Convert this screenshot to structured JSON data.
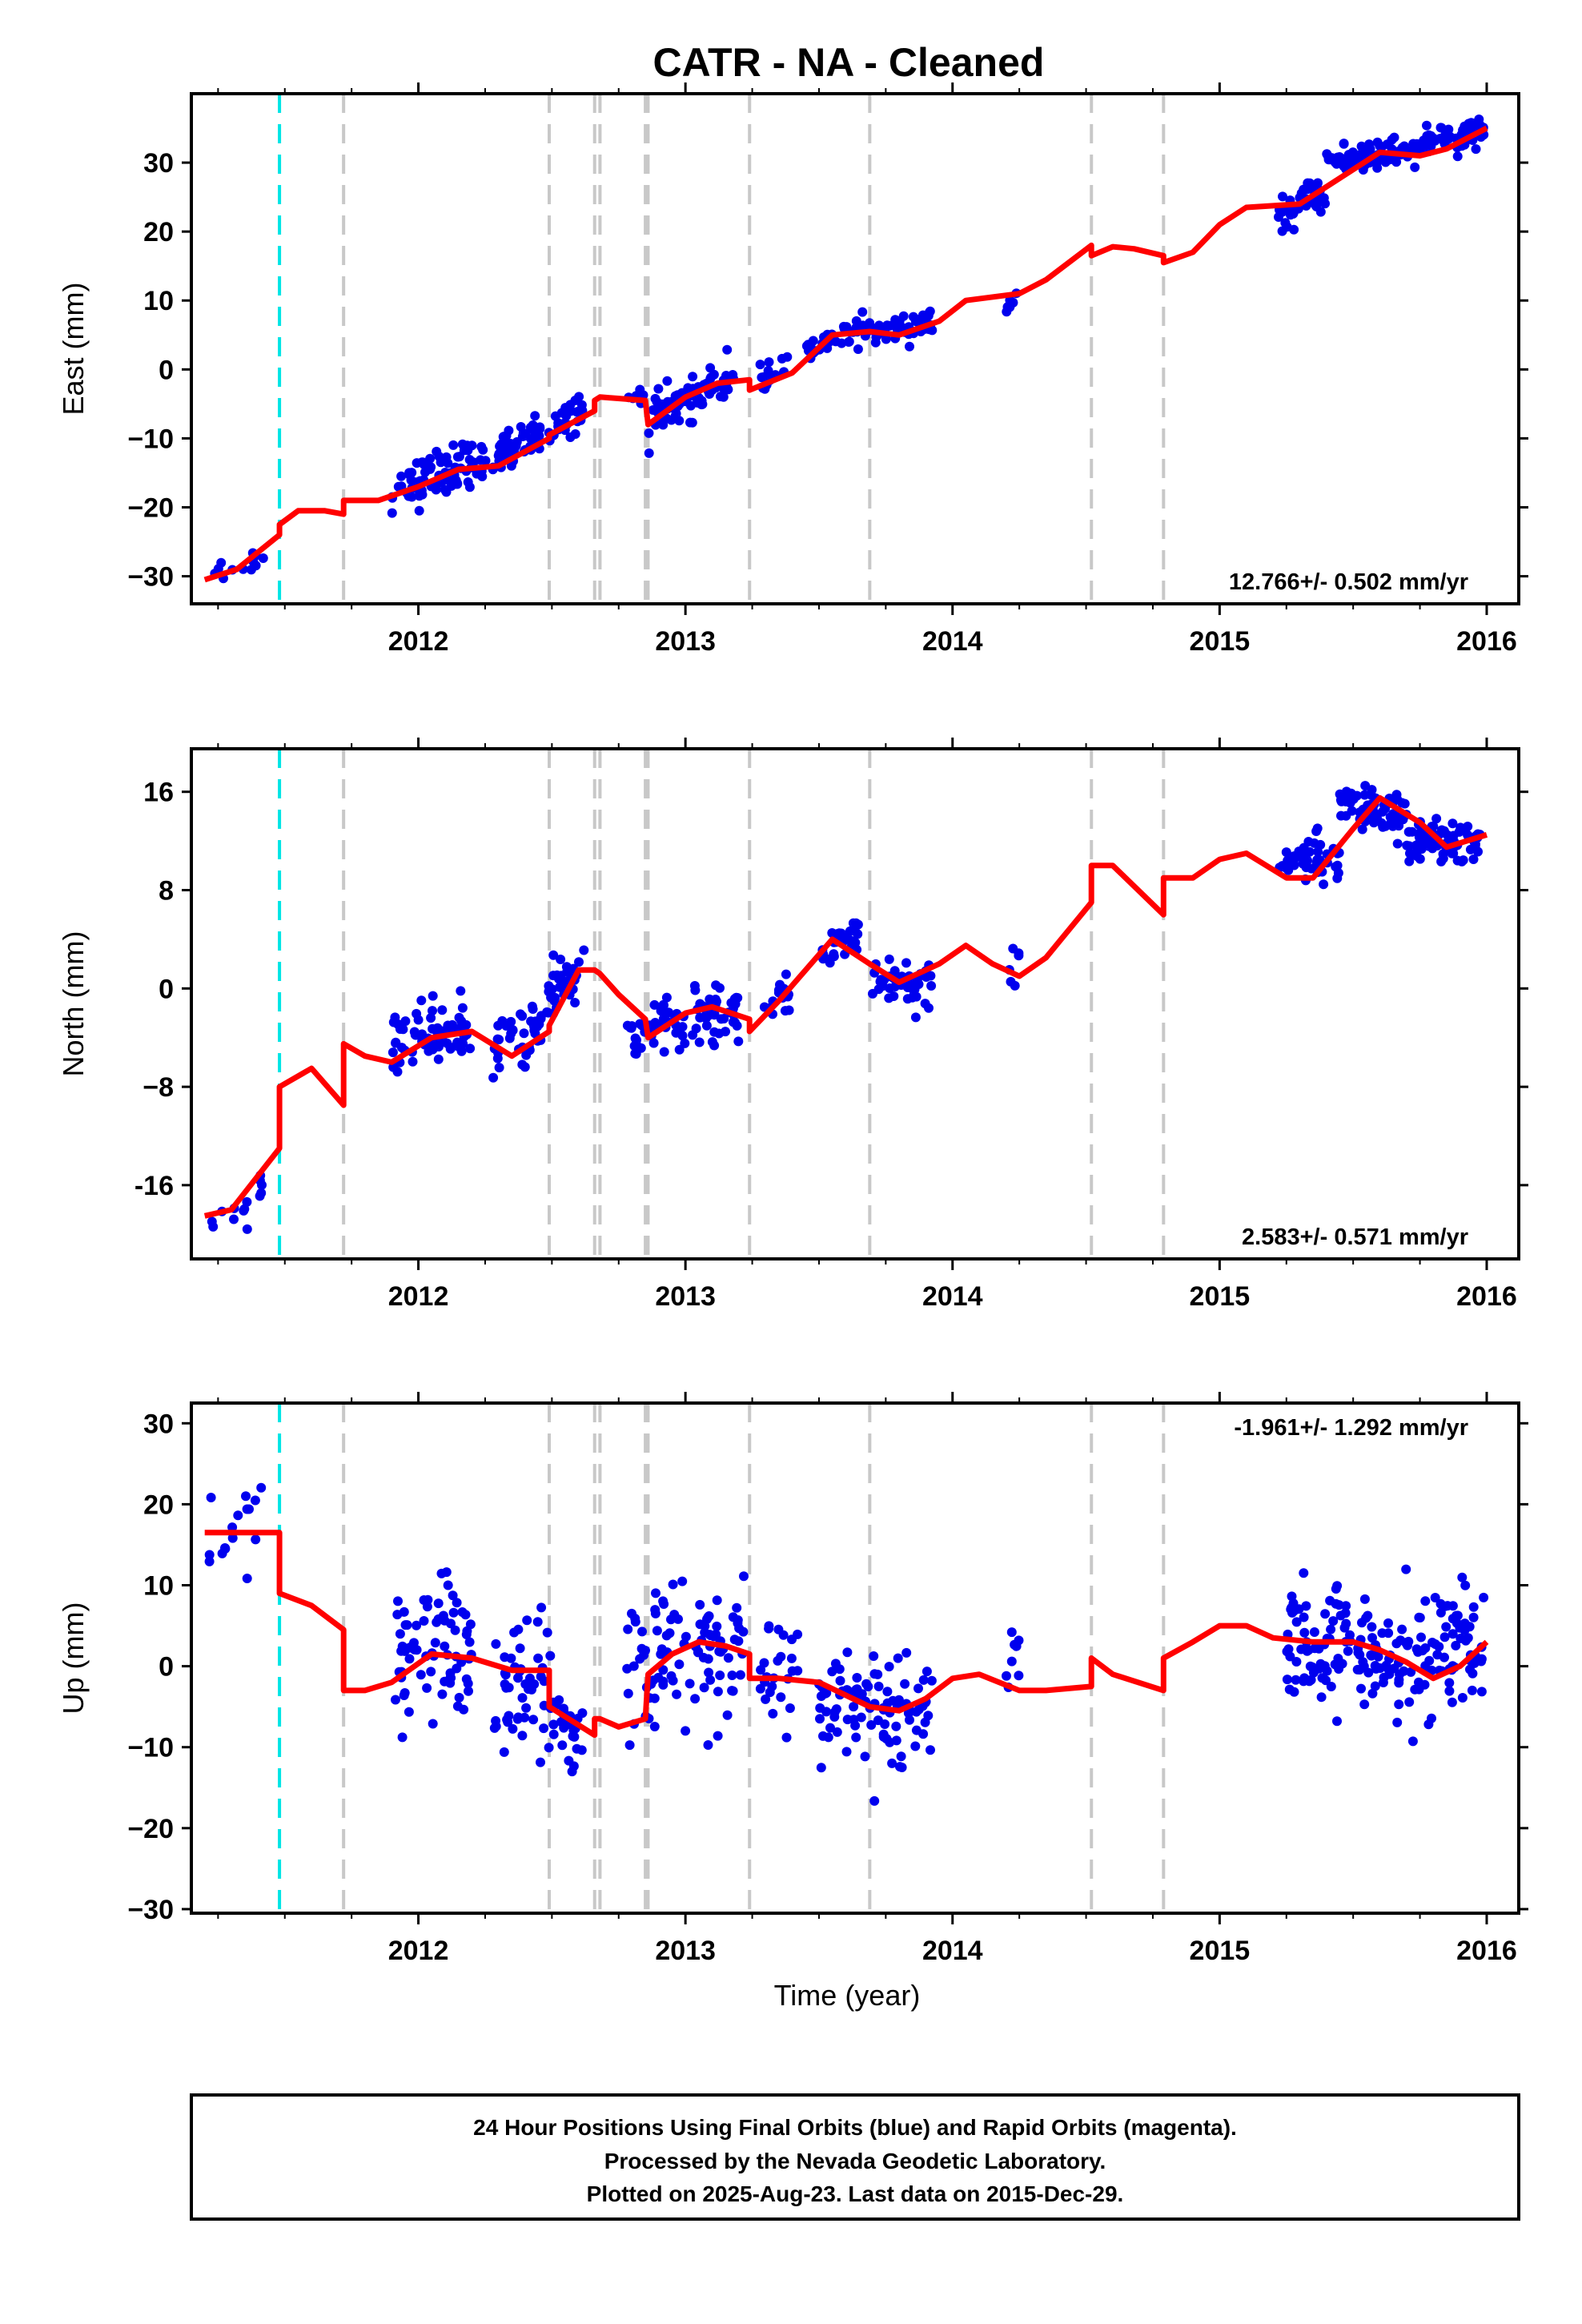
{
  "title": "CATR  - NA - Cleaned",
  "x_axis": {
    "label": "Time (year)",
    "lim": [
      2011.15,
      2016.12
    ],
    "ticks": [
      2012,
      2013,
      2014,
      2015,
      2016
    ],
    "tick_labels": [
      "2012",
      "2013",
      "2014",
      "2015",
      "2016"
    ]
  },
  "colors": {
    "final_orbits": "#0000ee",
    "model": "#ff0000",
    "antenna_change": "#00e5e5",
    "equipment_change": "#c8c8c8",
    "frame": "#000000"
  },
  "steps": {
    "antenna": [
      2011.48
    ],
    "equipment": [
      2011.72,
      2012.49,
      2012.66,
      2012.68,
      2012.85,
      2012.86,
      2013.24,
      2013.69,
      2014.52,
      2014.79
    ]
  },
  "chart_data": [
    {
      "type": "scatter",
      "panel": "east",
      "ylabel": "East (mm)",
      "ylim": [
        -34,
        40
      ],
      "yticks": [
        -30,
        -20,
        -10,
        0,
        10,
        20,
        30
      ],
      "ytick_labels": [
        "−30",
        "−20",
        "−10",
        "0",
        "10",
        "20",
        "30"
      ],
      "rate_label": "12.766+/- 0.502 mm/yr",
      "rate_position": "bottom-right",
      "observations": [
        {
          "t0": 2011.2,
          "t1": 2011.42,
          "n": 12,
          "y0": -30,
          "y1": -27,
          "spread": 1.8
        },
        {
          "t0": 2011.9,
          "t1": 2012.2,
          "n": 70,
          "y0": -18,
          "y1": -13,
          "spread": 3.5
        },
        {
          "t0": 2012.2,
          "t1": 2012.36,
          "n": 25,
          "y0": -14,
          "y1": -12,
          "spread": 2.8
        },
        {
          "t0": 2012.3,
          "t1": 2012.62,
          "n": 70,
          "y0": -12,
          "y1": -6,
          "spread": 2.5
        },
        {
          "t0": 2012.77,
          "t1": 2012.85,
          "n": 8,
          "y0": -4,
          "y1": -4,
          "spread": 1.0
        },
        {
          "t0": 2012.86,
          "t1": 2013.18,
          "n": 75,
          "y0": -7,
          "y1": -1,
          "spread": 3.0
        },
        {
          "t0": 2013.28,
          "t1": 2013.4,
          "n": 15,
          "y0": -2,
          "y1": 1,
          "spread": 2.0
        },
        {
          "t0": 2013.45,
          "t1": 2013.7,
          "n": 40,
          "y0": 3,
          "y1": 6,
          "spread": 2.0
        },
        {
          "t0": 2013.7,
          "t1": 2013.93,
          "n": 45,
          "y0": 5,
          "y1": 7,
          "spread": 2.0
        },
        {
          "t0": 2014.2,
          "t1": 2014.25,
          "n": 6,
          "y0": 9,
          "y1": 11,
          "spread": 1.5
        },
        {
          "t0": 2015.22,
          "t1": 2015.4,
          "n": 40,
          "y0": 22,
          "y1": 26,
          "spread": 2.5
        },
        {
          "t0": 2015.4,
          "t1": 2015.75,
          "n": 90,
          "y0": 30,
          "y1": 32,
          "spread": 2.0
        },
        {
          "t0": 2015.75,
          "t1": 2015.99,
          "n": 65,
          "y0": 32,
          "y1": 35,
          "spread": 2.0
        }
      ],
      "model": [
        [
          2011.2,
          -30.5
        ],
        [
          2011.32,
          -29
        ],
        [
          2011.48,
          -24
        ],
        [
          2011.48,
          -22.5
        ],
        [
          2011.55,
          -20.5
        ],
        [
          2011.65,
          -20.5
        ],
        [
          2011.72,
          -21
        ],
        [
          2011.72,
          -19
        ],
        [
          2011.85,
          -19
        ],
        [
          2012.0,
          -17
        ],
        [
          2012.15,
          -14.5
        ],
        [
          2012.3,
          -14
        ],
        [
          2012.49,
          -10
        ],
        [
          2012.49,
          -9.5
        ],
        [
          2012.66,
          -6
        ],
        [
          2012.66,
          -4.5
        ],
        [
          2012.68,
          -4
        ],
        [
          2012.85,
          -4.5
        ],
        [
          2012.86,
          -8
        ],
        [
          2013.0,
          -4
        ],
        [
          2013.12,
          -2
        ],
        [
          2013.24,
          -1.5
        ],
        [
          2013.24,
          -3
        ],
        [
          2013.4,
          -0.5
        ],
        [
          2013.55,
          5
        ],
        [
          2013.69,
          5.5
        ],
        [
          2013.8,
          5
        ],
        [
          2013.95,
          7
        ],
        [
          2014.05,
          10
        ],
        [
          2014.25,
          11
        ],
        [
          2014.35,
          13
        ],
        [
          2014.52,
          18
        ],
        [
          2014.52,
          16.5
        ],
        [
          2014.6,
          17.8
        ],
        [
          2014.68,
          17.5
        ],
        [
          2014.79,
          16.5
        ],
        [
          2014.79,
          15.5
        ],
        [
          2014.9,
          17
        ],
        [
          2015.0,
          21
        ],
        [
          2015.1,
          23.5
        ],
        [
          2015.3,
          24
        ],
        [
          2015.5,
          29
        ],
        [
          2015.6,
          31.5
        ],
        [
          2015.75,
          31
        ],
        [
          2015.85,
          32
        ],
        [
          2016.0,
          35
        ]
      ]
    },
    {
      "type": "scatter",
      "panel": "north",
      "ylabel": "North (mm)",
      "ylim": [
        -22,
        19.5
      ],
      "yticks": [
        -16,
        -8,
        0,
        8,
        16
      ],
      "ytick_labels": [
        "-16",
        "−8",
        "0",
        "8",
        "16"
      ],
      "rate_label": "2.583+/- 0.571 mm/yr",
      "rate_position": "bottom-right",
      "observations": [
        {
          "t0": 2011.2,
          "t1": 2011.42,
          "n": 14,
          "y0": -19,
          "y1": -16.5,
          "spread": 2.0
        },
        {
          "t0": 2011.9,
          "t1": 2012.2,
          "n": 70,
          "y0": -4.5,
          "y1": -3,
          "spread": 2.5
        },
        {
          "t0": 2012.28,
          "t1": 2012.48,
          "n": 40,
          "y0": -5,
          "y1": -3,
          "spread": 2.5
        },
        {
          "t0": 2012.48,
          "t1": 2012.62,
          "n": 40,
          "y0": -1,
          "y1": 2,
          "spread": 2.0
        },
        {
          "t0": 2012.78,
          "t1": 2013.2,
          "n": 90,
          "y0": -3.5,
          "y1": -2,
          "spread": 2.2
        },
        {
          "t0": 2013.28,
          "t1": 2013.4,
          "n": 15,
          "y0": -2,
          "y1": 0,
          "spread": 1.8
        },
        {
          "t0": 2013.5,
          "t1": 2013.65,
          "n": 30,
          "y0": 3,
          "y1": 4.5,
          "spread": 2.0
        },
        {
          "t0": 2013.7,
          "t1": 2013.93,
          "n": 45,
          "y0": 0.5,
          "y1": 0.5,
          "spread": 2.0
        },
        {
          "t0": 2014.2,
          "t1": 2014.25,
          "n": 6,
          "y0": 0,
          "y1": 3,
          "spread": 2.0
        },
        {
          "t0": 2015.22,
          "t1": 2015.45,
          "n": 45,
          "y0": 10,
          "y1": 11,
          "spread": 2.0
        },
        {
          "t0": 2015.45,
          "t1": 2015.7,
          "n": 70,
          "y0": 15,
          "y1": 14,
          "spread": 1.8
        },
        {
          "t0": 2015.7,
          "t1": 2015.99,
          "n": 80,
          "y0": 12,
          "y1": 11.5,
          "spread": 1.8
        }
      ],
      "model": [
        [
          2011.2,
          -18.5
        ],
        [
          2011.3,
          -18
        ],
        [
          2011.48,
          -13
        ],
        [
          2011.48,
          -8
        ],
        [
          2011.6,
          -6.5
        ],
        [
          2011.72,
          -9.5
        ],
        [
          2011.72,
          -4.5
        ],
        [
          2011.8,
          -5.5
        ],
        [
          2011.9,
          -6
        ],
        [
          2012.05,
          -4
        ],
        [
          2012.2,
          -3.5
        ],
        [
          2012.35,
          -5.5
        ],
        [
          2012.49,
          -3.5
        ],
        [
          2012.49,
          -3
        ],
        [
          2012.6,
          1.5
        ],
        [
          2012.66,
          1.5
        ],
        [
          2012.68,
          1.2
        ],
        [
          2012.75,
          -0.5
        ],
        [
          2012.85,
          -2.5
        ],
        [
          2012.86,
          -4
        ],
        [
          2013.0,
          -2
        ],
        [
          2013.1,
          -1.5
        ],
        [
          2013.24,
          -2.5
        ],
        [
          2013.24,
          -3.5
        ],
        [
          2013.35,
          -1
        ],
        [
          2013.55,
          4
        ],
        [
          2013.69,
          2
        ],
        [
          2013.8,
          0.5
        ],
        [
          2013.95,
          2
        ],
        [
          2014.05,
          3.5
        ],
        [
          2014.15,
          2
        ],
        [
          2014.25,
          1
        ],
        [
          2014.35,
          2.5
        ],
        [
          2014.52,
          7
        ],
        [
          2014.52,
          10
        ],
        [
          2014.6,
          10
        ],
        [
          2014.79,
          6
        ],
        [
          2014.79,
          9
        ],
        [
          2014.9,
          9
        ],
        [
          2015.0,
          10.5
        ],
        [
          2015.1,
          11
        ],
        [
          2015.25,
          9
        ],
        [
          2015.35,
          9
        ],
        [
          2015.5,
          13
        ],
        [
          2015.6,
          15.5
        ],
        [
          2015.75,
          13.5
        ],
        [
          2015.85,
          11.5
        ],
        [
          2016.0,
          12.5
        ]
      ]
    },
    {
      "type": "scatter",
      "panel": "up",
      "ylabel": "Up (mm)",
      "ylim": [
        -30.5,
        32.5
      ],
      "yticks": [
        -30,
        -20,
        -10,
        0,
        10,
        20,
        30
      ],
      "ytick_labels": [
        "−30",
        "−20",
        "−10",
        "0",
        "10",
        "20",
        "30"
      ],
      "rate_label": "-1.961+/- 1.292 mm/yr",
      "rate_position": "top-right",
      "observations": [
        {
          "t0": 2011.2,
          "t1": 2011.42,
          "n": 16,
          "y0": 14,
          "y1": 18,
          "spread": 6.0
        },
        {
          "t0": 2011.9,
          "t1": 2012.2,
          "n": 75,
          "y0": 0,
          "y1": 2,
          "spread": 9.0
        },
        {
          "t0": 2012.28,
          "t1": 2012.5,
          "n": 50,
          "y0": -3,
          "y1": -1,
          "spread": 8.0
        },
        {
          "t0": 2012.5,
          "t1": 2012.62,
          "n": 25,
          "y0": -7,
          "y1": -9,
          "spread": 5.0
        },
        {
          "t0": 2012.78,
          "t1": 2013.22,
          "n": 100,
          "y0": 0,
          "y1": 2,
          "spread": 8.5
        },
        {
          "t0": 2013.28,
          "t1": 2013.42,
          "n": 25,
          "y0": -1,
          "y1": -1,
          "spread": 7.0
        },
        {
          "t0": 2013.5,
          "t1": 2013.7,
          "n": 45,
          "y0": -4,
          "y1": -5,
          "spread": 6.0
        },
        {
          "t0": 2013.7,
          "t1": 2013.93,
          "n": 50,
          "y0": -5,
          "y1": -5,
          "spread": 7.0
        },
        {
          "t0": 2014.2,
          "t1": 2014.25,
          "n": 8,
          "y0": 0,
          "y1": 4,
          "spread": 6.0
        },
        {
          "t0": 2015.25,
          "t1": 2015.99,
          "n": 200,
          "y0": 3,
          "y1": 1,
          "spread": 7.5
        }
      ],
      "model": [
        [
          2011.2,
          16.5
        ],
        [
          2011.48,
          16.5
        ],
        [
          2011.48,
          9
        ],
        [
          2011.6,
          7.5
        ],
        [
          2011.72,
          4.5
        ],
        [
          2011.72,
          -3
        ],
        [
          2011.8,
          -3
        ],
        [
          2011.9,
          -2
        ],
        [
          2012.05,
          1.5
        ],
        [
          2012.2,
          1
        ],
        [
          2012.35,
          -0.5
        ],
        [
          2012.49,
          -0.5
        ],
        [
          2012.49,
          -5
        ],
        [
          2012.66,
          -8.5
        ],
        [
          2012.66,
          -6.5
        ],
        [
          2012.68,
          -6.5
        ],
        [
          2012.75,
          -7.5
        ],
        [
          2012.85,
          -6.5
        ],
        [
          2012.86,
          -1
        ],
        [
          2012.95,
          1.5
        ],
        [
          2013.05,
          3
        ],
        [
          2013.15,
          2.5
        ],
        [
          2013.24,
          1.5
        ],
        [
          2013.24,
          -1.5
        ],
        [
          2013.35,
          -1.5
        ],
        [
          2013.5,
          -2
        ],
        [
          2013.69,
          -5
        ],
        [
          2013.8,
          -5.5
        ],
        [
          2013.9,
          -4
        ],
        [
          2014.0,
          -1.5
        ],
        [
          2014.1,
          -1
        ],
        [
          2014.25,
          -3
        ],
        [
          2014.35,
          -3
        ],
        [
          2014.52,
          -2.5
        ],
        [
          2014.52,
          1
        ],
        [
          2014.6,
          -1
        ],
        [
          2014.79,
          -3
        ],
        [
          2014.79,
          1
        ],
        [
          2014.9,
          3
        ],
        [
          2015.0,
          5
        ],
        [
          2015.1,
          5
        ],
        [
          2015.2,
          3.5
        ],
        [
          2015.35,
          3
        ],
        [
          2015.5,
          3
        ],
        [
          2015.6,
          2
        ],
        [
          2015.7,
          0.5
        ],
        [
          2015.8,
          -1.5
        ],
        [
          2015.9,
          0
        ],
        [
          2016.0,
          3
        ]
      ]
    }
  ],
  "footer": {
    "line1": "24 Hour Positions Using Final Orbits (blue) and Rapid Orbits (magenta).",
    "line2": "Processed by the Nevada Geodetic Laboratory.",
    "line3": "Plotted on 2025-Aug-23. Last data on 2015-Dec-29."
  }
}
